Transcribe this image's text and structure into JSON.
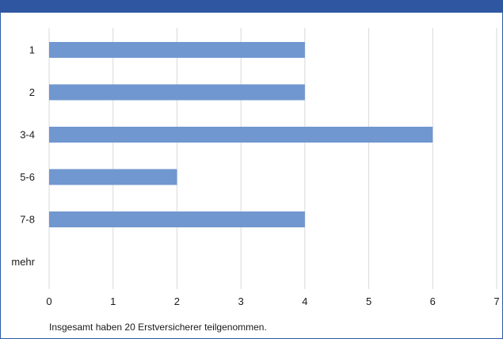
{
  "chart_data": {
    "type": "bar",
    "orientation": "horizontal",
    "categories": [
      "1",
      "2",
      "3-4",
      "5-6",
      "7-8",
      "mehr"
    ],
    "values": [
      4,
      4,
      6,
      2,
      4,
      0
    ],
    "xlim": [
      0,
      7
    ],
    "xticks": [
      "0",
      "1",
      "2",
      "3",
      "4",
      "5",
      "6",
      "7"
    ],
    "grid": "vertical",
    "bar_color": "#7097cf",
    "grid_color": "#d9d9d9",
    "legend": "none"
  },
  "footnote": "Insgesamt haben 20 Erstversicherer teilgenommen.",
  "header_color": "#2f56a0"
}
